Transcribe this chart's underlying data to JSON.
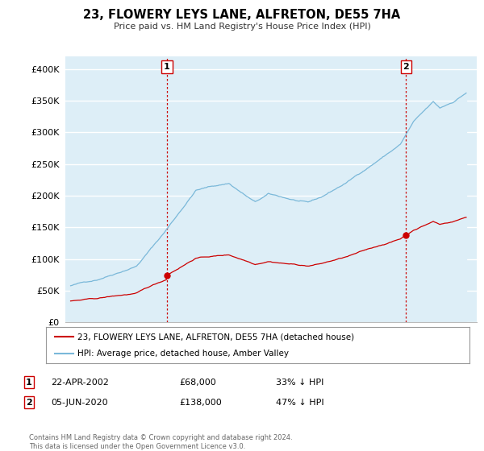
{
  "title": "23, FLOWERY LEYS LANE, ALFRETON, DE55 7HA",
  "subtitle": "Price paid vs. HM Land Registry's House Price Index (HPI)",
  "ylim": [
    0,
    420000
  ],
  "yticks": [
    0,
    50000,
    100000,
    150000,
    200000,
    250000,
    300000,
    350000,
    400000
  ],
  "ytick_labels": [
    "£0",
    "£50K",
    "£100K",
    "£150K",
    "£200K",
    "£250K",
    "£300K",
    "£350K",
    "£400K"
  ],
  "hpi_color": "#7ab8d9",
  "price_color": "#cc0000",
  "vline_color": "#cc0000",
  "marker1_year": 2002.31,
  "marker2_year": 2020.43,
  "legend_line1": "23, FLOWERY LEYS LANE, ALFRETON, DE55 7HA (detached house)",
  "legend_line2": "HPI: Average price, detached house, Amber Valley",
  "footnote": "Contains HM Land Registry data © Crown copyright and database right 2024.\nThis data is licensed under the Open Government Licence v3.0.",
  "table_row1": [
    "1",
    "22-APR-2002",
    "£68,000",
    "33% ↓ HPI"
  ],
  "table_row2": [
    "2",
    "05-JUN-2020",
    "£138,000",
    "47% ↓ HPI"
  ],
  "hpi_fill_color": "#ddeef7",
  "xlim_left": 1994.6,
  "xlim_right": 2025.8
}
